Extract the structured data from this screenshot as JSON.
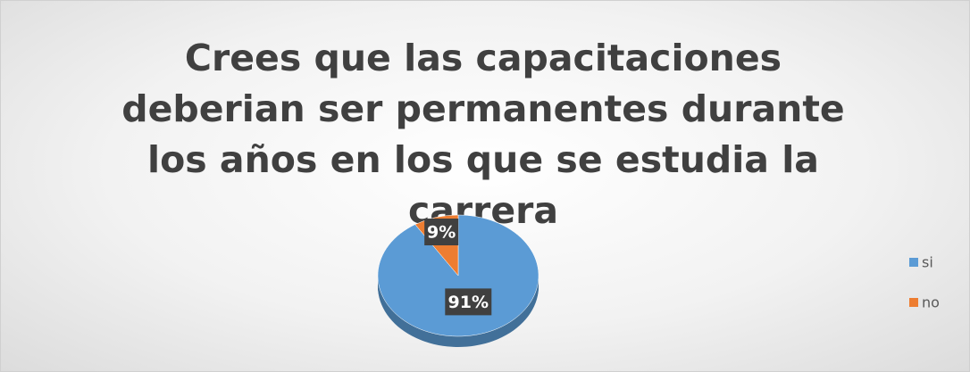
{
  "chart_data": {
    "type": "pie",
    "title": "Crees que las capacitaciones deberian ser permanentes durante los años en los que se estudia la carrera",
    "categories": [
      "si",
      "no"
    ],
    "values": [
      91,
      9
    ],
    "value_labels": [
      "91%",
      "9%"
    ],
    "colors": [
      "#5b9bd5",
      "#ed7d31"
    ],
    "legend": "right"
  }
}
